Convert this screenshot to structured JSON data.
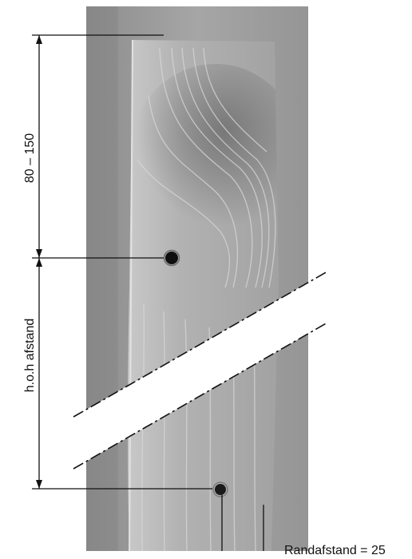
{
  "figure": {
    "labels": {
      "top_dimension": "80 – 150",
      "center_spacing": "h.o.h afstand",
      "edge_distance": "Randafstand = 25"
    }
  },
  "colors": {
    "background": "#ffffff",
    "photo_backdrop": "#9c9c9c",
    "board": "#b3b3b3",
    "annotation_lines": "#111111"
  }
}
